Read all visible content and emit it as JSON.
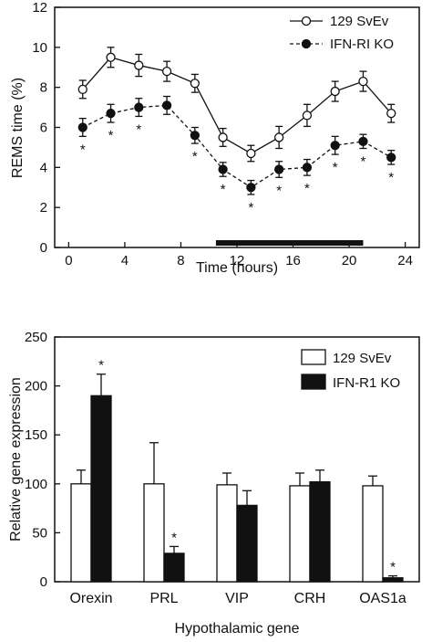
{
  "chart_data": [
    {
      "type": "line",
      "xlabel": "Time (hours)",
      "ylabel": "REMS time (%)",
      "xlim": [
        -1,
        25
      ],
      "ylim": [
        0,
        12
      ],
      "xticks": [
        "0",
        "4",
        "8",
        "12",
        "16",
        "20",
        "24"
      ],
      "yticks": [
        "0",
        "2",
        "4",
        "6",
        "8",
        "10",
        "12"
      ],
      "x": [
        1,
        3,
        5,
        7,
        9,
        11,
        13,
        15,
        17,
        19,
        21,
        23
      ],
      "series": [
        {
          "name": "129 SvEv",
          "marker": "open-circle",
          "line": "solid",
          "values": [
            7.9,
            9.5,
            9.1,
            8.8,
            8.2,
            5.5,
            4.7,
            5.5,
            6.6,
            7.8,
            8.3,
            6.7
          ],
          "errors": [
            0.45,
            0.5,
            0.55,
            0.5,
            0.45,
            0.45,
            0.4,
            0.55,
            0.55,
            0.5,
            0.5,
            0.45
          ]
        },
        {
          "name": "IFN-RI KO",
          "marker": "filled-circle",
          "line": "dashed",
          "values": [
            6.0,
            6.7,
            7.0,
            7.1,
            5.6,
            3.9,
            3.0,
            3.9,
            4.0,
            5.1,
            5.3,
            4.5
          ],
          "errors": [
            0.45,
            0.45,
            0.45,
            0.45,
            0.4,
            0.35,
            0.35,
            0.4,
            0.4,
            0.45,
            0.35,
            0.35
          ]
        }
      ],
      "significance_marker": "*",
      "significant_x": [
        1,
        3,
        5,
        9,
        11,
        13,
        15,
        17,
        19,
        21,
        23
      ],
      "dark_period": [
        10.5,
        21
      ],
      "legend_position": "top-right"
    },
    {
      "type": "bar",
      "xlabel": "Hypothalamic gene",
      "ylabel": "Relative gene expression",
      "ylim": [
        0,
        250
      ],
      "yticks": [
        "0",
        "50",
        "100",
        "150",
        "200",
        "250"
      ],
      "categories": [
        "Orexin",
        "PRL",
        "VIP",
        "CRH",
        "OAS1a"
      ],
      "series": [
        {
          "name": "129 SvEv",
          "fill": "white",
          "values": [
            100,
            100,
            99,
            98,
            98
          ],
          "errors": [
            14,
            42,
            12,
            13,
            10
          ]
        },
        {
          "name": "IFN-R1 KO",
          "fill": "black",
          "values": [
            190,
            29,
            78,
            102,
            4
          ],
          "errors": [
            22,
            7,
            15,
            12,
            2
          ]
        }
      ],
      "significance_marker": "*",
      "significant_categories": [
        "Orexin",
        "PRL",
        "OAS1a"
      ],
      "legend_position": "top-right"
    }
  ],
  "colors": {
    "ink": "#111111",
    "paper": "#ffffff"
  }
}
